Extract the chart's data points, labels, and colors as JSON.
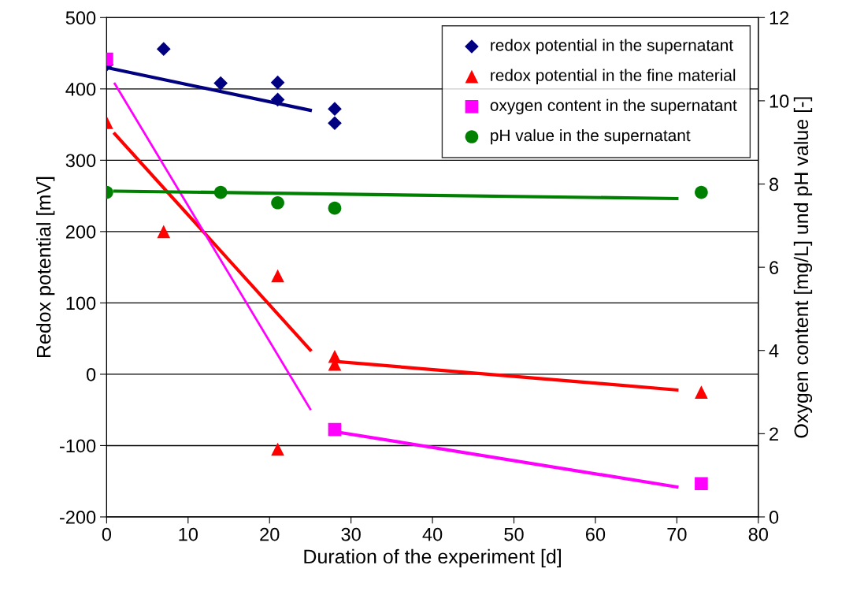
{
  "chart_data": {
    "type": "scatter",
    "xlabel": "Duration of the experiment [d]",
    "ylabel": "Redox potential [mV]",
    "y2label": "Oxygen content [mg/L] und pH value [-]",
    "xlim": [
      0,
      80
    ],
    "xticks": [
      0,
      10,
      20,
      30,
      40,
      50,
      60,
      70,
      80
    ],
    "ylim": [
      -200,
      500
    ],
    "yticks": [
      -200,
      -100,
      0,
      100,
      200,
      300,
      400,
      500
    ],
    "y2lim": [
      0,
      12
    ],
    "y2ticks": [
      0,
      2,
      4,
      6,
      8,
      10,
      12
    ],
    "grid": "y",
    "legend": "top right",
    "series": [
      {
        "name": "redox potential in the supernatant",
        "color": "#000080",
        "marker": "diamond",
        "x": [
          0,
          7,
          14,
          21,
          21,
          28,
          28
        ],
        "values": [
          434,
          456,
          408,
          409,
          385,
          372,
          352
        ]
      },
      {
        "name": "redox potential in the fine material",
        "color": "#ff0000",
        "marker": "triangle",
        "x": [
          0,
          7,
          21,
          21,
          28,
          28,
          73
        ],
        "values": [
          353,
          200,
          138,
          -105,
          25,
          14,
          -25
        ]
      },
      {
        "name": "oxygen content in the supernatant",
        "color": "#ff00ff",
        "marker": "square",
        "axis": "y2",
        "x": [
          0,
          28,
          73
        ],
        "values": [
          11.0,
          2.1,
          0.8
        ]
      },
      {
        "name": "pH value in the supernatant",
        "color": "#008000",
        "marker": "circle",
        "axis": "y2",
        "x": [
          0,
          14,
          21,
          28,
          73
        ],
        "values": [
          7.8,
          7.8,
          7.55,
          7.42,
          7.8
        ]
      },
      {
        "type": "line",
        "color": "#000080",
        "x": [
          0,
          25
        ],
        "values": [
          430,
          370
        ]
      },
      {
        "type": "line",
        "color": "#ff0000",
        "x": [
          1,
          25
        ],
        "values": [
          337,
          34
        ]
      },
      {
        "type": "line",
        "color": "#ff0000",
        "x": [
          28,
          70
        ],
        "values": [
          18,
          -22
        ]
      },
      {
        "type": "line",
        "color": "#ff00ff",
        "axis": "y2",
        "x": [
          1,
          25
        ],
        "values": [
          10.41,
          2.59
        ]
      },
      {
        "type": "line",
        "color": "#ff00ff",
        "axis": "y2",
        "x": [
          28,
          70
        ],
        "values": [
          2.05,
          0.72
        ]
      },
      {
        "type": "line",
        "color": "#008000",
        "axis": "y2",
        "x": [
          1,
          70
        ],
        "values": [
          7.83,
          7.65
        ]
      }
    ]
  }
}
